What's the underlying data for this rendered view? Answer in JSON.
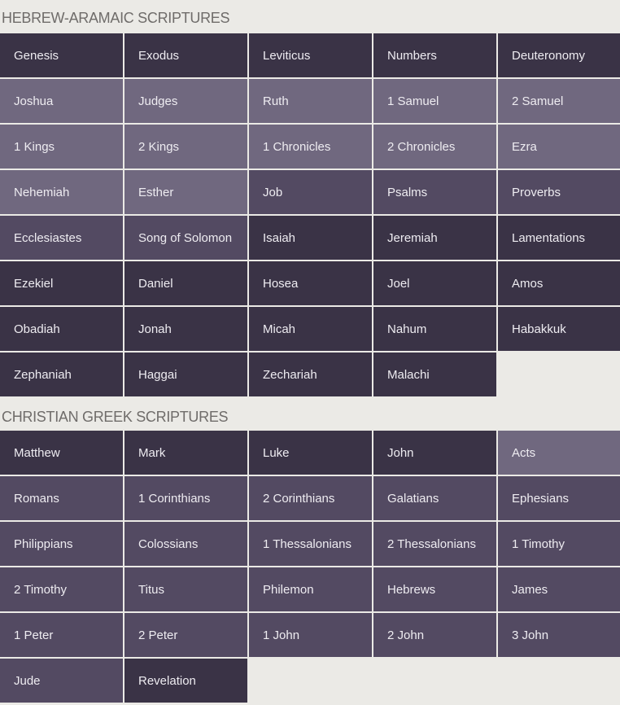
{
  "colors": {
    "dark": "#3a3346",
    "medium": "#534a62",
    "light": "#70687f",
    "background": "#ebeae6"
  },
  "sections": [
    {
      "title": "HEBREW-ARAMAIC SCRIPTURES",
      "books": [
        {
          "name": "Genesis",
          "shade": "dark"
        },
        {
          "name": "Exodus",
          "shade": "dark"
        },
        {
          "name": "Leviticus",
          "shade": "dark"
        },
        {
          "name": "Numbers",
          "shade": "dark"
        },
        {
          "name": "Deuteronomy",
          "shade": "dark"
        },
        {
          "name": "Joshua",
          "shade": "light"
        },
        {
          "name": "Judges",
          "shade": "light"
        },
        {
          "name": "Ruth",
          "shade": "light"
        },
        {
          "name": "1 Samuel",
          "shade": "light"
        },
        {
          "name": "2 Samuel",
          "shade": "light"
        },
        {
          "name": "1 Kings",
          "shade": "light"
        },
        {
          "name": "2 Kings",
          "shade": "light"
        },
        {
          "name": "1 Chronicles",
          "shade": "light"
        },
        {
          "name": "2 Chronicles",
          "shade": "light"
        },
        {
          "name": "Ezra",
          "shade": "light"
        },
        {
          "name": "Nehemiah",
          "shade": "light"
        },
        {
          "name": "Esther",
          "shade": "light"
        },
        {
          "name": "Job",
          "shade": "medium"
        },
        {
          "name": "Psalms",
          "shade": "medium"
        },
        {
          "name": "Proverbs",
          "shade": "medium"
        },
        {
          "name": "Ecclesiastes",
          "shade": "medium"
        },
        {
          "name": "Song of Solomon",
          "shade": "medium"
        },
        {
          "name": "Isaiah",
          "shade": "dark"
        },
        {
          "name": "Jeremiah",
          "shade": "dark"
        },
        {
          "name": "Lamentations",
          "shade": "dark"
        },
        {
          "name": "Ezekiel",
          "shade": "dark"
        },
        {
          "name": "Daniel",
          "shade": "dark"
        },
        {
          "name": "Hosea",
          "shade": "dark"
        },
        {
          "name": "Joel",
          "shade": "dark"
        },
        {
          "name": "Amos",
          "shade": "dark"
        },
        {
          "name": "Obadiah",
          "shade": "dark"
        },
        {
          "name": "Jonah",
          "shade": "dark"
        },
        {
          "name": "Micah",
          "shade": "dark"
        },
        {
          "name": "Nahum",
          "shade": "dark"
        },
        {
          "name": "Habakkuk",
          "shade": "dark"
        },
        {
          "name": "Zephaniah",
          "shade": "dark"
        },
        {
          "name": "Haggai",
          "shade": "dark"
        },
        {
          "name": "Zechariah",
          "shade": "dark"
        },
        {
          "name": "Malachi",
          "shade": "dark"
        }
      ]
    },
    {
      "title": "CHRISTIAN GREEK SCRIPTURES",
      "books": [
        {
          "name": "Matthew",
          "shade": "dark"
        },
        {
          "name": "Mark",
          "shade": "dark"
        },
        {
          "name": "Luke",
          "shade": "dark"
        },
        {
          "name": "John",
          "shade": "dark"
        },
        {
          "name": "Acts",
          "shade": "light"
        },
        {
          "name": "Romans",
          "shade": "medium"
        },
        {
          "name": "1 Corinthians",
          "shade": "medium"
        },
        {
          "name": "2 Corinthians",
          "shade": "medium"
        },
        {
          "name": "Galatians",
          "shade": "medium"
        },
        {
          "name": "Ephesians",
          "shade": "medium"
        },
        {
          "name": "Philippians",
          "shade": "medium"
        },
        {
          "name": "Colossians",
          "shade": "medium"
        },
        {
          "name": "1 Thessalonians",
          "shade": "medium"
        },
        {
          "name": "2 Thessalonians",
          "shade": "medium"
        },
        {
          "name": "1 Timothy",
          "shade": "medium"
        },
        {
          "name": "2 Timothy",
          "shade": "medium"
        },
        {
          "name": "Titus",
          "shade": "medium"
        },
        {
          "name": "Philemon",
          "shade": "medium"
        },
        {
          "name": "Hebrews",
          "shade": "medium"
        },
        {
          "name": "James",
          "shade": "medium"
        },
        {
          "name": "1 Peter",
          "shade": "medium"
        },
        {
          "name": "2 Peter",
          "shade": "medium"
        },
        {
          "name": "1 John",
          "shade": "medium"
        },
        {
          "name": "2 John",
          "shade": "medium"
        },
        {
          "name": "3 John",
          "shade": "medium"
        },
        {
          "name": "Jude",
          "shade": "medium"
        },
        {
          "name": "Revelation",
          "shade": "dark"
        }
      ]
    }
  ]
}
